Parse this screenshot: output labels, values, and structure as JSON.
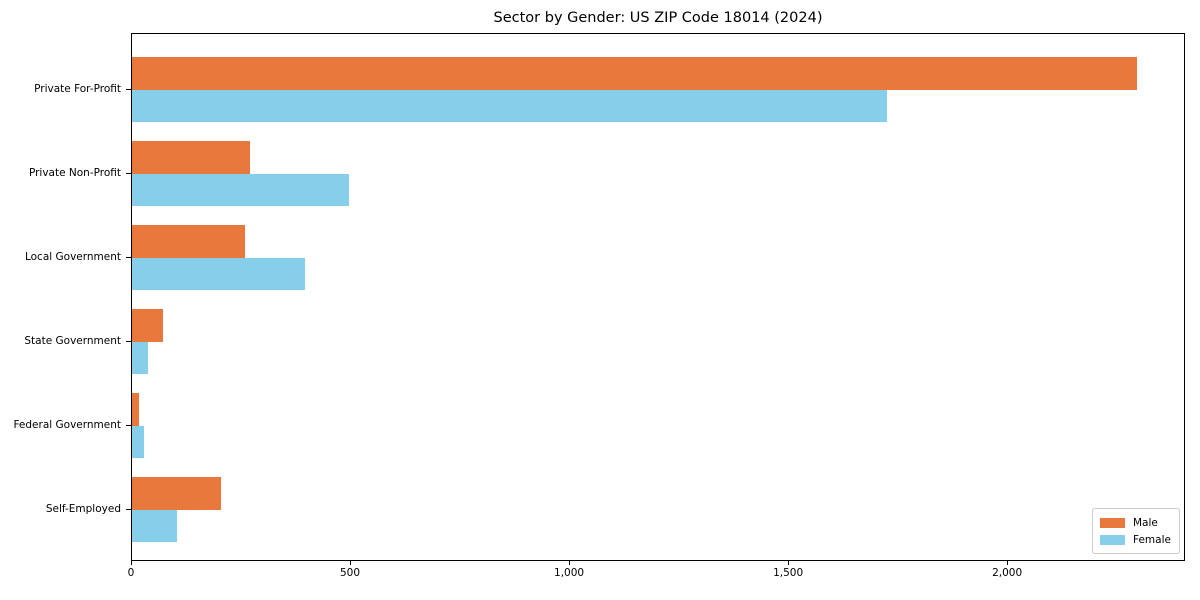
{
  "title": "Sector by Gender: US ZIP Code 18014 (2024)",
  "colors": {
    "male": "#e8783c",
    "female": "#87ceeb",
    "spine": "#000000",
    "legend_border": "#cccccc",
    "background": "#ffffff"
  },
  "chart_data": {
    "type": "bar",
    "orientation": "horizontal",
    "title": "Sector by Gender: US ZIP Code 18014 (2024)",
    "xlabel": "",
    "ylabel": "",
    "categories": [
      "Private For-Profit",
      "Private Non-Profit",
      "Local Government",
      "State Government",
      "Federal Government",
      "Self-Employed"
    ],
    "series": [
      {
        "name": "Male",
        "color": "#e8783c",
        "values": [
          2294,
          270,
          258,
          71,
          17,
          204
        ]
      },
      {
        "name": "Female",
        "color": "#87ceeb",
        "values": [
          1723,
          496,
          394,
          37,
          28,
          103
        ]
      }
    ],
    "xlim": [
      0,
      2406
    ],
    "xticks": [
      0,
      500,
      1000,
      1500,
      2000
    ],
    "xtick_labels": [
      "0",
      "500",
      "1,000",
      "1,500",
      "2,000"
    ],
    "grid": false,
    "legend": {
      "position": "lower right",
      "entries": [
        "Male",
        "Female"
      ]
    }
  }
}
